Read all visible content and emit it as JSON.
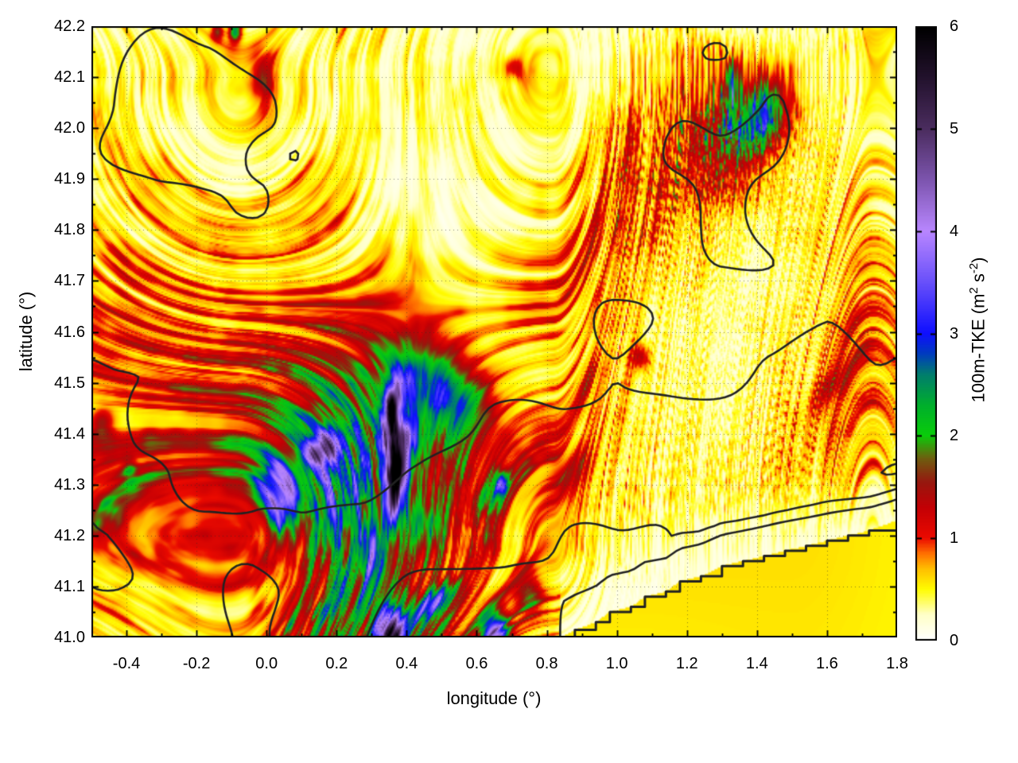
{
  "figure": {
    "xlabel": "longitude (°)",
    "ylabel": "latitude (°)",
    "colorbar_label": {
      "prefix": "100m-TKE (m",
      "sup1": "2",
      "mid": " s",
      "sup2": "-2",
      "suffix": ")"
    }
  },
  "chart_data": {
    "type": "heatmap",
    "title": "",
    "xlabel": "longitude (°)",
    "ylabel": "latitude (°)",
    "colorbar_label": "100m-TKE (m2 s-2)",
    "x_range": [
      -0.5,
      1.8
    ],
    "y_range": [
      41.0,
      42.2
    ],
    "z_range": [
      0,
      6
    ],
    "grid_on": true,
    "x_tick_labels": [
      "-0.4",
      "-0.2",
      "0.0",
      "0.2",
      "0.4",
      "0.6",
      "0.8",
      "1.0",
      "1.2",
      "1.4",
      "1.6",
      "1.8"
    ],
    "x_tick_values": [
      -0.4,
      -0.2,
      0.0,
      0.2,
      0.4,
      0.6,
      0.8,
      1.0,
      1.2,
      1.4,
      1.6,
      1.8
    ],
    "x_minor_step": 0.1,
    "y_tick_labels": [
      "41.0",
      "41.1",
      "41.2",
      "41.3",
      "41.4",
      "41.5",
      "41.6",
      "41.7",
      "41.8",
      "41.9",
      "42.0",
      "42.1",
      "42.2"
    ],
    "y_tick_values": [
      41.0,
      41.1,
      41.2,
      41.3,
      41.4,
      41.5,
      41.6,
      41.7,
      41.8,
      41.9,
      42.0,
      42.1,
      42.2
    ],
    "y_minor_step": 0.05,
    "colorbar_tick_labels": [
      "0",
      "1",
      "2",
      "3",
      "4",
      "5",
      "6"
    ],
    "colorbar_tick_values": [
      0,
      1,
      2,
      3,
      4,
      5,
      6
    ],
    "palette_stops": [
      [
        0.0,
        [
          255,
          255,
          255
        ]
      ],
      [
        0.25,
        [
          255,
          255,
          200
        ]
      ],
      [
        0.5,
        [
          255,
          252,
          0
        ]
      ],
      [
        0.7,
        [
          255,
          190,
          0
        ]
      ],
      [
        0.85,
        [
          255,
          110,
          0
        ]
      ],
      [
        1.0,
        [
          235,
          10,
          0
        ]
      ],
      [
        1.3,
        [
          195,
          0,
          5
        ]
      ],
      [
        1.55,
        [
          150,
          25,
          15
        ]
      ],
      [
        1.78,
        [
          110,
          95,
          15
        ]
      ],
      [
        2.0,
        [
          10,
          205,
          10
        ]
      ],
      [
        2.3,
        [
          0,
          175,
          45
        ]
      ],
      [
        2.6,
        [
          0,
          125,
          110
        ]
      ],
      [
        2.8,
        [
          0,
          60,
          190
        ]
      ],
      [
        3.0,
        [
          15,
          15,
          255
        ]
      ],
      [
        3.5,
        [
          105,
          80,
          250
        ]
      ],
      [
        4.0,
        [
          185,
          135,
          255
        ]
      ],
      [
        4.5,
        [
          125,
          85,
          175
        ]
      ],
      [
        5.0,
        [
          75,
          45,
          95
        ]
      ],
      [
        5.5,
        [
          35,
          18,
          45
        ]
      ],
      [
        6.0,
        [
          0,
          0,
          0
        ]
      ]
    ],
    "grid_lon_start": -0.5,
    "grid_lon_step": 0.1,
    "grid_lat_start": 42.2,
    "grid_lat_step": -0.1,
    "tke_grid": [
      [
        0.3,
        0.4,
        0.4,
        0.5,
        0.8,
        0.6,
        0.4,
        0.5,
        0.4,
        0.4,
        0.3,
        0.3,
        0.4,
        0.4,
        0.3,
        0.3,
        0.4,
        0.5,
        0.4,
        0.3,
        0.3,
        0.4,
        0.5,
        0.4
      ],
      [
        0.3,
        0.4,
        0.5,
        0.5,
        0.7,
        0.8,
        0.5,
        0.4,
        0.3,
        0.4,
        0.4,
        0.5,
        0.5,
        0.4,
        0.3,
        0.4,
        0.6,
        0.9,
        1.3,
        0.9,
        0.5,
        0.4,
        0.5,
        0.4
      ],
      [
        0.4,
        0.5,
        0.4,
        0.4,
        0.5,
        0.6,
        0.5,
        0.4,
        0.3,
        0.3,
        0.4,
        0.4,
        0.4,
        0.4,
        0.5,
        0.7,
        0.9,
        1.3,
        1.5,
        1.1,
        0.6,
        0.4,
        0.4,
        0.4
      ],
      [
        0.4,
        0.5,
        0.6,
        0.5,
        0.4,
        0.5,
        0.6,
        0.5,
        0.3,
        0.2,
        0.3,
        0.3,
        0.4,
        0.5,
        0.7,
        0.9,
        1.1,
        1.0,
        0.9,
        0.7,
        0.5,
        0.5,
        0.6,
        0.5
      ],
      [
        0.5,
        0.6,
        0.6,
        0.7,
        0.7,
        0.6,
        0.7,
        0.7,
        0.5,
        0.3,
        0.2,
        0.3,
        0.4,
        0.6,
        0.8,
        1.0,
        0.9,
        0.7,
        0.5,
        0.4,
        0.5,
        0.6,
        0.7,
        0.5
      ],
      [
        0.7,
        0.8,
        0.8,
        0.8,
        0.9,
        0.8,
        0.9,
        0.8,
        0.7,
        0.5,
        0.4,
        0.4,
        0.6,
        0.8,
        0.9,
        0.8,
        0.6,
        0.5,
        0.4,
        0.3,
        0.4,
        0.6,
        0.8,
        0.6
      ],
      [
        0.9,
        0.9,
        1.0,
        0.9,
        1.0,
        1.1,
        1.2,
        1.2,
        1.0,
        0.8,
        0.6,
        0.6,
        0.7,
        0.9,
        0.8,
        0.7,
        0.5,
        0.4,
        0.3,
        0.4,
        0.5,
        0.8,
        1.0,
        0.7
      ],
      [
        1.0,
        1.0,
        1.1,
        1.2,
        1.1,
        1.2,
        1.4,
        1.7,
        1.9,
        1.4,
        1.0,
        0.8,
        0.7,
        0.8,
        0.9,
        0.7,
        0.5,
        0.4,
        0.3,
        0.4,
        0.6,
        0.8,
        1.0,
        0.8
      ],
      [
        1.1,
        1.2,
        1.3,
        1.2,
        1.3,
        1.5,
        1.9,
        1.8,
        2.0,
        1.5,
        1.1,
        0.9,
        0.8,
        0.9,
        0.9,
        0.7,
        0.5,
        0.4,
        0.4,
        0.5,
        0.7,
        0.8,
        0.9,
        0.7
      ],
      [
        1.2,
        1.3,
        1.4,
        1.3,
        1.5,
        1.8,
        1.7,
        2.2,
        1.8,
        1.3,
        1.1,
        1.0,
        1.2,
        1.1,
        0.8,
        0.6,
        0.5,
        0.4,
        0.5,
        0.6,
        0.7,
        0.8,
        0.8,
        0.6
      ],
      [
        0.9,
        1.1,
        1.2,
        1.1,
        1.2,
        1.4,
        1.5,
        1.8,
        1.6,
        1.1,
        1.0,
        1.1,
        0.9,
        0.7,
        0.6,
        0.5,
        0.4,
        0.4,
        0.5,
        0.5,
        0.6,
        0.6,
        0.6,
        0.5
      ],
      [
        0.6,
        0.8,
        0.7,
        0.8,
        0.9,
        1.0,
        1.2,
        1.5,
        1.3,
        1.0,
        1.1,
        0.8,
        0.7,
        0.6,
        0.5,
        0.4,
        0.4,
        0.4,
        0.5,
        0.5,
        0.5,
        0.5,
        0.5,
        0.5
      ],
      [
        0.4,
        0.5,
        0.5,
        0.6,
        0.7,
        0.9,
        1.3,
        1.8,
        1.6,
        1.1,
        1.5,
        0.9,
        0.8,
        0.6,
        0.5,
        0.5,
        0.5,
        0.5,
        0.5,
        0.5,
        0.5,
        0.5,
        0.5,
        0.5
      ]
    ],
    "hotspots": [
      [
        0.36,
        41.455,
        3.2,
        0.016,
        0.045,
        15
      ],
      [
        0.375,
        41.33,
        4.8,
        0.02,
        0.055,
        8
      ],
      [
        0.4,
        41.4,
        1.2,
        0.03,
        0.02,
        20
      ],
      [
        0.155,
        41.37,
        2.6,
        0.04,
        0.022,
        -15
      ],
      [
        0.05,
        41.285,
        1.6,
        0.045,
        0.035,
        20
      ],
      [
        0.48,
        41.5,
        1.05,
        0.09,
        0.05,
        20
      ],
      [
        0.56,
        41.46,
        0.75,
        0.07,
        0.045,
        25
      ],
      [
        0.44,
        41.22,
        1.2,
        0.05,
        0.04,
        10
      ],
      [
        0.31,
        41.16,
        1.4,
        0.035,
        0.05,
        0
      ],
      [
        0.36,
        41.005,
        3.8,
        0.032,
        0.03,
        0
      ],
      [
        0.65,
        41.005,
        3.4,
        0.028,
        0.032,
        0
      ],
      [
        0.47,
        41.065,
        2.3,
        0.05,
        0.016,
        -28
      ],
      [
        0.75,
        41.085,
        1.3,
        0.03,
        0.028,
        0
      ],
      [
        0.67,
        41.3,
        2.0,
        0.013,
        0.015,
        0
      ],
      [
        0.62,
        41.27,
        0.9,
        0.03,
        0.02,
        -20
      ],
      [
        1.42,
        42.03,
        1.5,
        0.045,
        0.035,
        -35
      ],
      [
        1.33,
        42.07,
        0.9,
        0.015,
        0.04,
        10
      ],
      [
        -0.09,
        42.19,
        2.2,
        0.012,
        0.014,
        0
      ],
      [
        -0.14,
        42.19,
        1.3,
        0.012,
        0.012,
        0
      ],
      [
        -0.02,
        42.1,
        0.9,
        0.02,
        0.035,
        0
      ],
      [
        1.07,
        41.55,
        1.0,
        0.018,
        0.018,
        0
      ],
      [
        0.7,
        42.12,
        0.7,
        0.018,
        0.014,
        0
      ],
      [
        1.62,
        41.5,
        0.7,
        0.06,
        0.02,
        -40
      ],
      [
        0.86,
        41.32,
        0.8,
        0.05,
        0.025,
        -35
      ],
      [
        1.35,
        41.98,
        0.8,
        0.1,
        0.06,
        -30
      ],
      [
        0.05,
        41.33,
        0.6,
        0.3,
        0.1,
        -12
      ],
      [
        0.42,
        41.44,
        0.6,
        0.18,
        0.1,
        30
      ],
      [
        0.3,
        41.1,
        0.6,
        0.12,
        0.07,
        20
      ],
      [
        -0.47,
        41.42,
        1.1,
        0.025,
        0.02,
        -30
      ],
      [
        -0.39,
        41.33,
        1.0,
        0.015,
        0.015,
        0
      ]
    ],
    "sea": {
      "tke": 0.55,
      "coastline": [
        [
          0.84,
          41.0
        ],
        [
          0.88,
          41.015
        ],
        [
          0.94,
          41.03
        ],
        [
          0.98,
          41.05
        ],
        [
          1.04,
          41.06
        ],
        [
          1.08,
          41.08
        ],
        [
          1.14,
          41.09
        ],
        [
          1.18,
          41.11
        ],
        [
          1.24,
          41.12
        ],
        [
          1.3,
          41.14
        ],
        [
          1.36,
          41.15
        ],
        [
          1.42,
          41.16
        ],
        [
          1.48,
          41.17
        ],
        [
          1.54,
          41.18
        ],
        [
          1.6,
          41.19
        ],
        [
          1.66,
          41.2
        ],
        [
          1.72,
          41.21
        ],
        [
          1.8,
          41.23
        ]
      ]
    },
    "overlay": "black terrain elevation contour lines, 3 levels, plus stepped coastline in the south-east",
    "contour_level_fractions": [
      0.4,
      0.58,
      0.76
    ],
    "noise": {
      "seed": 5,
      "angle0": -48,
      "angle_var": 80,
      "angle_freq": 1.1,
      "along_freq": 2.4,
      "across_freq": 10.5,
      "gain": 0.55,
      "octaves": 4
    },
    "style": {
      "contour_color": "#222222",
      "grid_dot_color": "rgba(40,40,40,0.55)",
      "axis_color": "#000000",
      "sea_is_smooth": true
    }
  }
}
